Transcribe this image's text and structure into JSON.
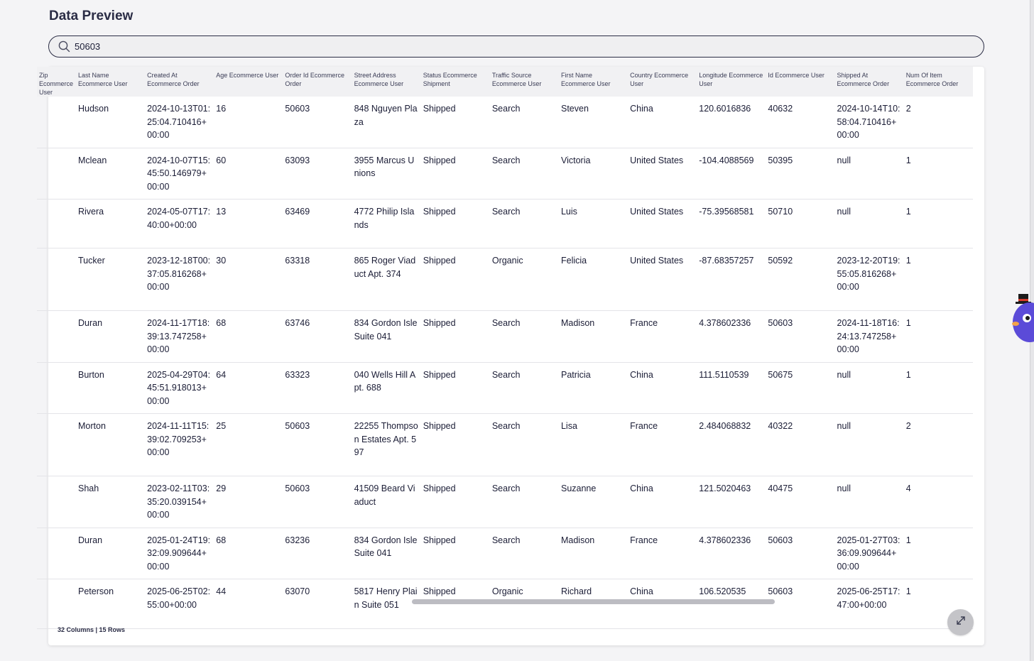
{
  "page": {
    "title": "Data Preview"
  },
  "search": {
    "value": "50603"
  },
  "table": {
    "columns": [
      "Zip Ecommerce User",
      "Last Name Ecommerce User",
      "Created At Ecommerce Order",
      "Age Ecommerce User",
      "Order Id Ecommerce Order",
      "Street Address Ecommerce User",
      "Status Ecommerce Shipment",
      "Traffic Source Ecommerce User",
      "First Name Ecommerce User",
      "Country Ecommerce User",
      "Longitude Ecommerce User",
      "Id Ecommerce User",
      "Shipped At Ecommerce Order",
      "Num Of Item Ecommerce Order"
    ],
    "rows": [
      [
        "",
        "Hudson",
        "2024-10-13T01:25:04.710416+00:00",
        "16",
        "50603",
        "848 Nguyen Plaza",
        "Shipped",
        "Search",
        "Steven",
        "China",
        "120.6016836",
        "40632",
        "2024-10-14T10:58:04.710416+00:00",
        "2"
      ],
      [
        "",
        "Mclean",
        "2024-10-07T15:45:50.146979+00:00",
        "60",
        "63093",
        "3955 Marcus Unions",
        "Shipped",
        "Search",
        "Victoria",
        "United States",
        "-104.4088569",
        "50395",
        "null",
        "1"
      ],
      [
        "",
        "Rivera",
        "2024-05-07T17:40:00+00:00",
        "13",
        "63469",
        "4772 Philip Islands",
        "Shipped",
        "Search",
        "Luis",
        "United States",
        "-75.39568581",
        "50710",
        "null",
        "1"
      ],
      [
        "",
        "Tucker",
        "2023-12-18T00:37:05.816268+00:00",
        "30",
        "63318",
        "865 Roger Viaduct Apt. 374",
        "Shipped",
        "Organic",
        "Felicia",
        "United States",
        "-87.68357257",
        "50592",
        "2023-12-20T19:55:05.816268+00:00",
        "1"
      ],
      [
        "",
        "Duran",
        "2024-11-17T18:39:13.747258+00:00",
        "68",
        "63746",
        "834 Gordon Isle Suite 041",
        "Shipped",
        "Search",
        "Madison",
        "France",
        "4.378602336",
        "50603",
        "2024-11-18T16:24:13.747258+00:00",
        "1"
      ],
      [
        "",
        "Burton",
        "2025-04-29T04:45:51.918013+00:00",
        "64",
        "63323",
        "040 Wells Hill Apt. 688",
        "Shipped",
        "Search",
        "Patricia",
        "China",
        "111.5110539",
        "50675",
        "null",
        "1"
      ],
      [
        "",
        "Morton",
        "2024-11-11T15:39:02.709253+00:00",
        "25",
        "50603",
        "22255 Thompson Estates Apt. 597",
        "Shipped",
        "Search",
        "Lisa",
        "France",
        "2.484068832",
        "40322",
        "null",
        "2"
      ],
      [
        "",
        "Shah",
        "2023-02-11T03:35:20.039154+00:00",
        "29",
        "50603",
        "41509 Beard Viaduct",
        "Shipped",
        "Search",
        "Suzanne",
        "China",
        "121.5020463",
        "40475",
        "null",
        "4"
      ],
      [
        "",
        "Duran",
        "2025-01-24T19:32:09.909644+00:00",
        "68",
        "63236",
        "834 Gordon Isle Suite 041",
        "Shipped",
        "Search",
        "Madison",
        "France",
        "4.378602336",
        "50603",
        "2025-01-27T03:36:09.909644+00:00",
        "1"
      ],
      [
        "",
        "Peterson",
        "2025-06-25T02:55:00+00:00",
        "44",
        "63070",
        "5817 Henry Plain Suite 051",
        "Shipped",
        "Organic",
        "Richard",
        "China",
        "106.520535",
        "50603",
        "2025-06-25T17:47:00+00:00",
        "1"
      ]
    ]
  },
  "footer": {
    "summary": "32 Columns | 15 Rows"
  },
  "icons": {
    "search": "search-icon",
    "expand": "expand-icon",
    "mascot": "mascot-icon"
  },
  "colors": {
    "text": "#1b1d36",
    "header_bg": "#f1f1f3",
    "page_bg": "#f4f4f6"
  }
}
